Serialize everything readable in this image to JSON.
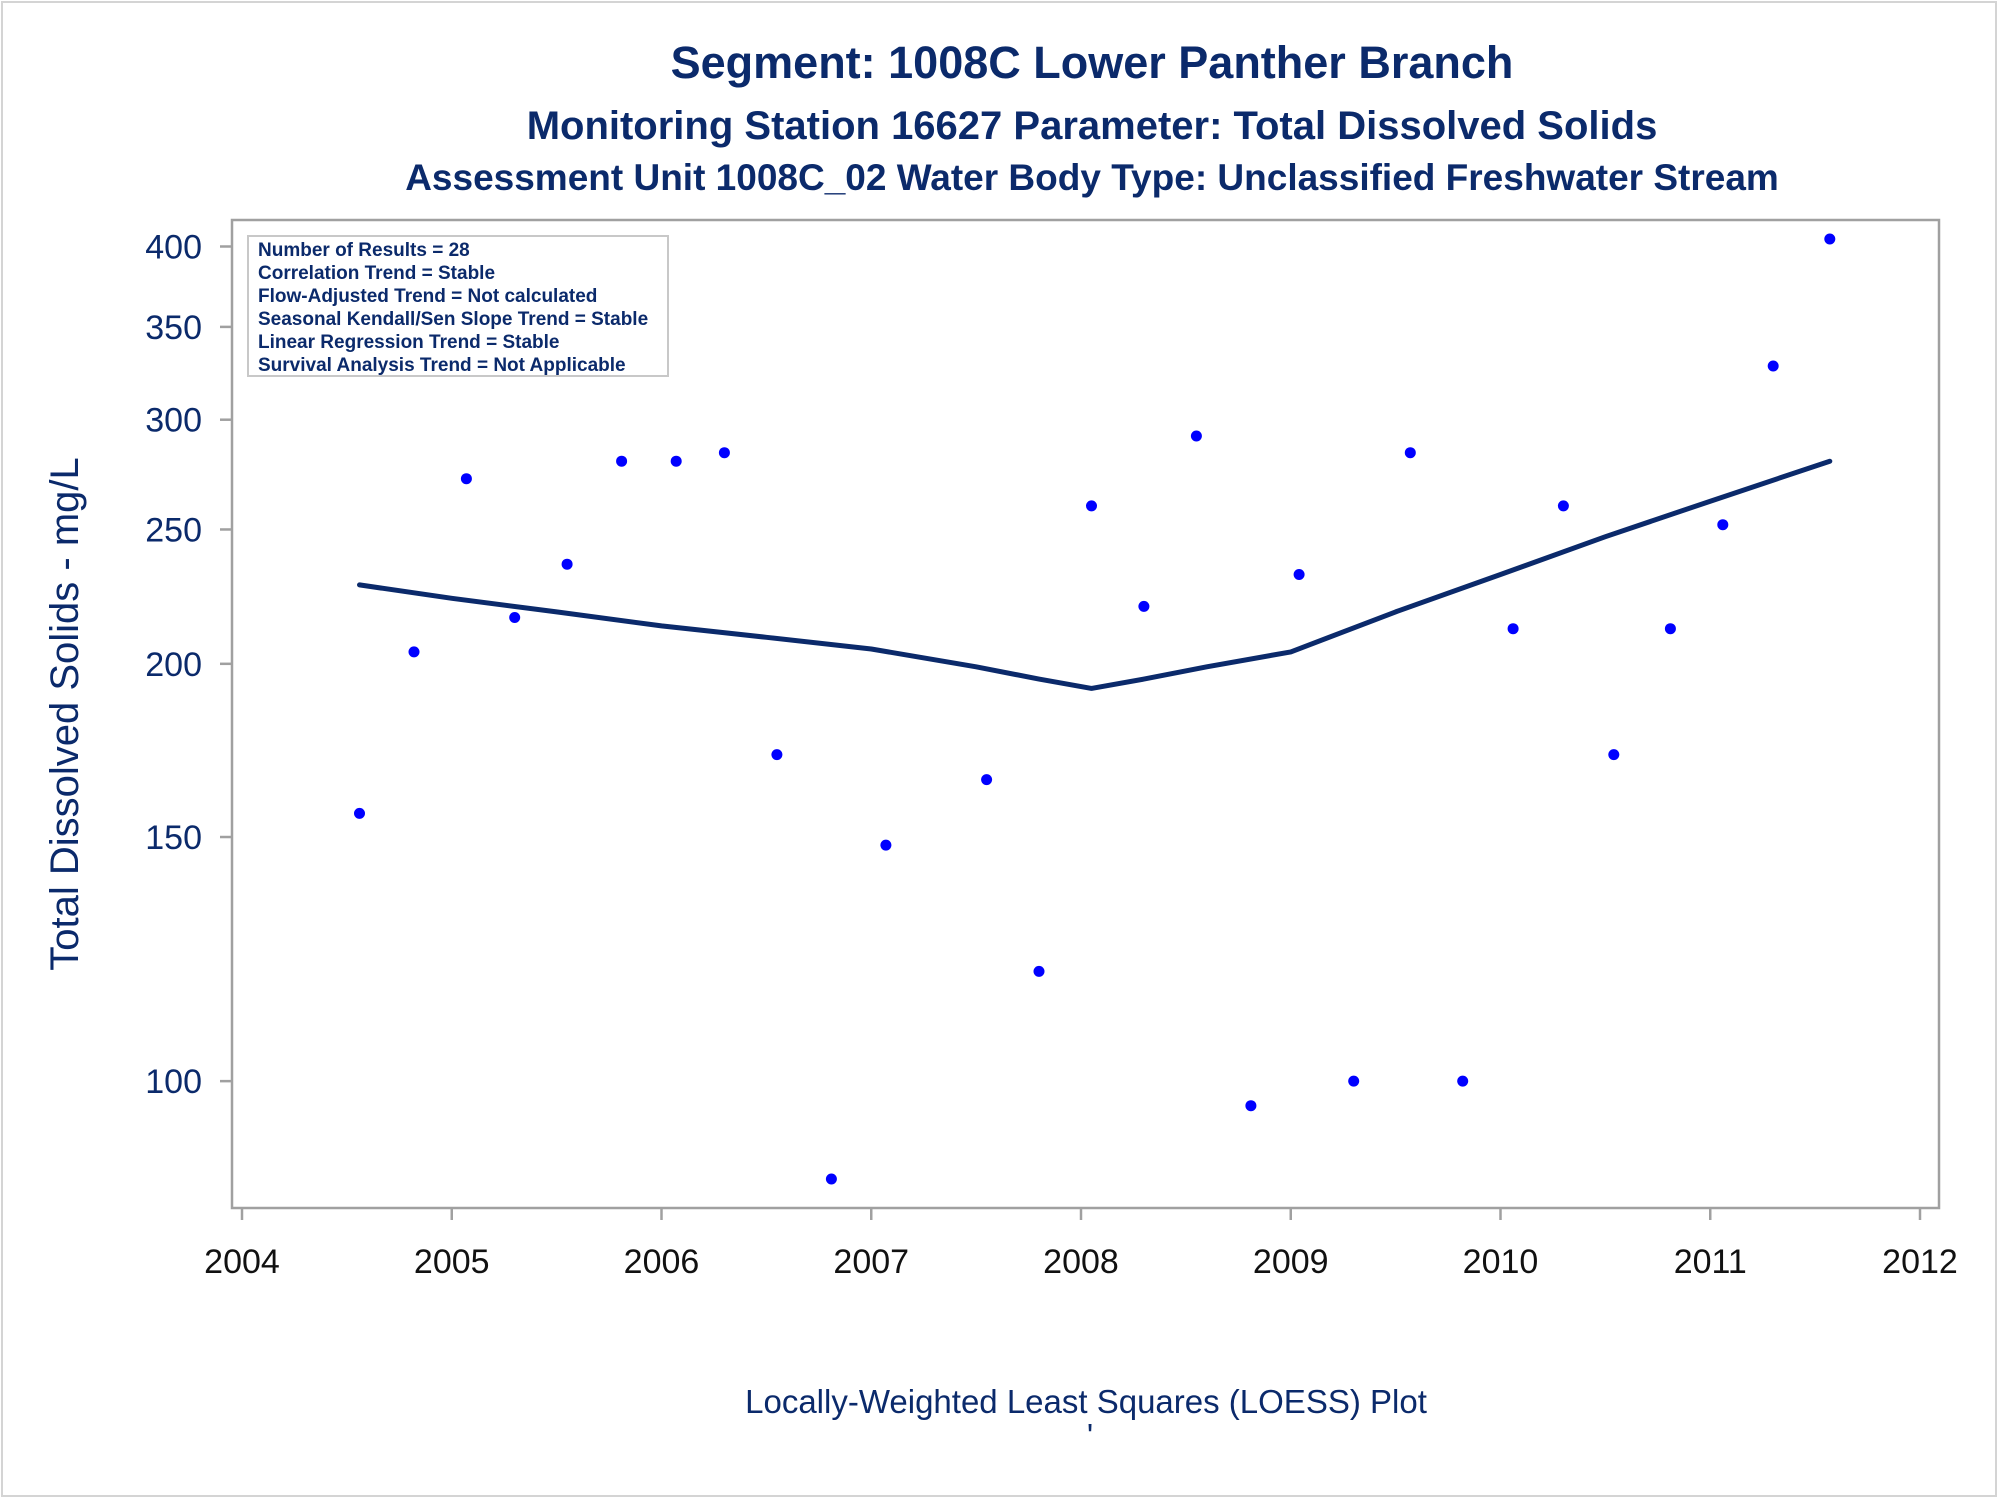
{
  "titles": {
    "line1": "Segment: 1008C  Lower Panther Branch",
    "line2": "Monitoring Station 16627 Parameter: Total Dissolved Solids",
    "line3": "Assessment Unit 1008C_02   Water Body Type: Unclassified Freshwater Stream"
  },
  "stats_box": [
    "Number of Results = 28",
    "Correlation Trend = Stable",
    "Flow-Adjusted Trend = Not calculated",
    "Seasonal Kendall/Sen Slope Trend = Stable",
    "Linear Regression Trend = Stable",
    "Survival Analysis Trend = Not Applicable"
  ],
  "footer": {
    "caption": "Locally-Weighted Least Squares (LOESS) Plot",
    "mark": "'"
  },
  "colors": {
    "points": "#0000ff",
    "loess": "#0b2a6b",
    "text": "#0b2a6b",
    "axis": "#a0a0a0"
  },
  "chart_data": {
    "type": "scatter",
    "ylabel": "Total Dissolved Solids - mg/L",
    "xlabel": "",
    "y_scale": "log",
    "xlim": [
      2004,
      2012
    ],
    "ylim": [
      81,
      418
    ],
    "x_ticks": [
      2004,
      2005,
      2006,
      2007,
      2008,
      2009,
      2010,
      2011,
      2012
    ],
    "y_ticks": [
      100,
      150,
      200,
      250,
      300,
      350,
      400
    ],
    "grid": false,
    "series": [
      {
        "kind": "points",
        "points": [
          [
            2004.56,
            156
          ],
          [
            2004.82,
            204
          ],
          [
            2005.07,
            272
          ],
          [
            2005.3,
            216
          ],
          [
            2005.55,
            236
          ],
          [
            2005.81,
            280
          ],
          [
            2006.07,
            280
          ],
          [
            2006.3,
            284
          ],
          [
            2006.55,
            172
          ],
          [
            2006.81,
            85
          ],
          [
            2007.07,
            148
          ],
          [
            2007.55,
            165
          ],
          [
            2007.8,
            120
          ],
          [
            2008.05,
            260
          ],
          [
            2008.3,
            220
          ],
          [
            2008.55,
            292
          ],
          [
            2008.81,
            96
          ],
          [
            2009.04,
            232
          ],
          [
            2009.3,
            100
          ],
          [
            2009.57,
            284
          ],
          [
            2009.82,
            100
          ],
          [
            2010.06,
            212
          ],
          [
            2010.3,
            260
          ],
          [
            2010.54,
            172
          ],
          [
            2010.81,
            212
          ],
          [
            2011.06,
            252
          ],
          [
            2011.3,
            328
          ],
          [
            2011.57,
            405
          ]
        ]
      },
      {
        "kind": "loess",
        "points": [
          [
            2004.56,
            228
          ],
          [
            2005.0,
            223
          ],
          [
            2005.5,
            218
          ],
          [
            2006.0,
            213
          ],
          [
            2006.5,
            209
          ],
          [
            2007.0,
            205
          ],
          [
            2007.5,
            199
          ],
          [
            2007.8,
            195
          ],
          [
            2008.05,
            192
          ],
          [
            2008.3,
            195
          ],
          [
            2008.6,
            199
          ],
          [
            2009.0,
            204
          ],
          [
            2009.5,
            218
          ],
          [
            2010.0,
            232
          ],
          [
            2010.5,
            247
          ],
          [
            2011.0,
            262
          ],
          [
            2011.57,
            280
          ]
        ]
      }
    ]
  }
}
